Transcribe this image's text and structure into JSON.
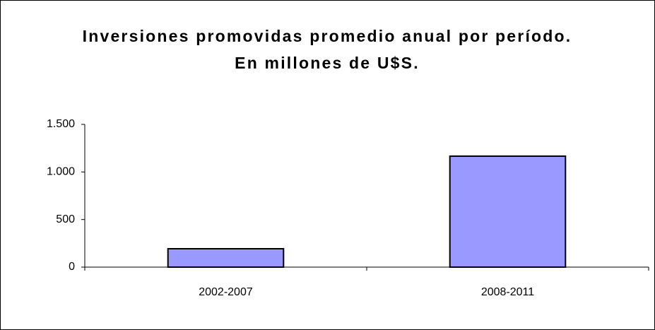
{
  "chart_data": {
    "type": "bar",
    "title": "Inversiones promovidas promedio anual por período. En millones de U$S.",
    "categories": [
      "2002-2007",
      "2008-2011"
    ],
    "values": [
      193,
      1166
    ],
    "color": "#9999ff",
    "ylim": [
      0,
      1500
    ],
    "yticks": [
      0,
      500,
      {
        "value": 1000,
        "label": "1.000"
      },
      {
        "value": 1500,
        "label": "1.500"
      }
    ],
    "grid": false
  }
}
